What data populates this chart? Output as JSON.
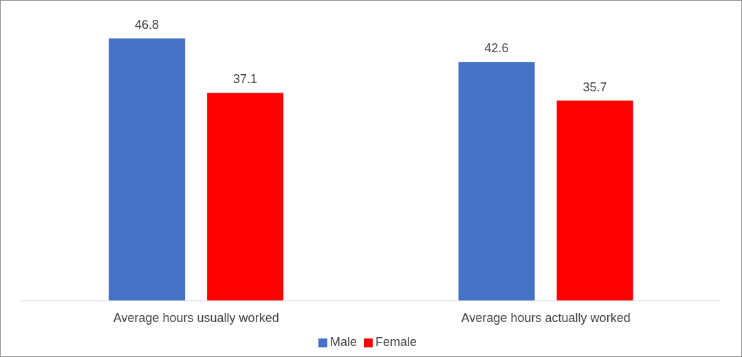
{
  "chart_data": {
    "type": "bar",
    "categories": [
      "Average hours usually worked",
      "Average hours actually worked"
    ],
    "series": [
      {
        "name": "Male",
        "color": "#4472c4",
        "values": [
          46.8,
          42.6
        ]
      },
      {
        "name": "Female",
        "color": "#ff0000",
        "values": [
          37.1,
          35.7
        ]
      }
    ],
    "data_labels": true,
    "legend": "bottom",
    "grid": false,
    "tick_labels": "x"
  }
}
